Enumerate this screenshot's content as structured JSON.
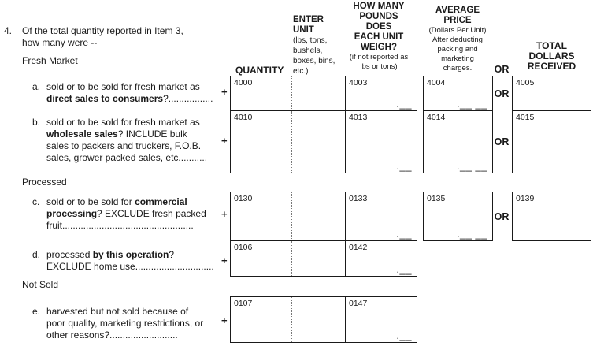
{
  "item": {
    "number": "4.",
    "question_line1": "Of the total quantity reported in Item 3,",
    "question_line2": "how many were --"
  },
  "sections": {
    "fresh_market": "Fresh Market",
    "processed": "Processed",
    "not_sold": "Not Sold"
  },
  "plus_sign": "+",
  "marks": {
    "single": ".__",
    "double": ".__ __"
  },
  "headers": {
    "quantity": "QUANTITY",
    "enter_unit": {
      "l1": "ENTER",
      "l2": "UNIT",
      "s1": "(lbs, tons,",
      "s2": "bushels,",
      "s3": "boxes, bins,",
      "s4": "etc.)"
    },
    "unit_weight": {
      "l1": "HOW MANY",
      "l2": "POUNDS",
      "l3": "DOES",
      "l4": "EACH UNIT",
      "l5": "WEIGH?",
      "s1": "(if not reported as",
      "s2": "lbs or tons)"
    },
    "avg_price": {
      "l1": "AVERAGE",
      "l2": "PRICE",
      "s1": "(Dollars Per Unit)",
      "s2": "After deducting",
      "s3": "packing and",
      "s4": "marketing",
      "s5": "charges."
    },
    "or": "OR",
    "total": {
      "l1": "TOTAL",
      "l2": "DOLLARS",
      "l3": "RECEIVED"
    }
  },
  "rows": {
    "a": {
      "letter": "a.",
      "label": {
        "l1": "sold or to be sold for fresh market as",
        "l2_bold": "direct sales to consumers",
        "l2_rest": "?................."
      },
      "codes": {
        "quantity": "4000",
        "pounds": "4003",
        "price": "4004",
        "total": "4005"
      }
    },
    "b": {
      "letter": "b.",
      "label": {
        "l1": "sold or to be sold for fresh market as",
        "l2_bold": "wholesale sales",
        "l2_rest": "? INCLUDE bulk",
        "l3": "sales to packers and truckers, F.O.B.",
        "l4": "sales, grower packed sales, etc..........."
      },
      "codes": {
        "quantity": "4010",
        "pounds": "4013",
        "price": "4014",
        "total": "4015"
      }
    },
    "c": {
      "letter": "c.",
      "label": {
        "l1_pre": "sold or to be sold for ",
        "l1_bold": "commercial",
        "l2_bold": "processing",
        "l2_rest": "? EXCLUDE fresh packed",
        "l3": "fruit.................................................."
      },
      "codes": {
        "quantity": "0130",
        "pounds": "0133",
        "price": "0135",
        "total": "0139"
      }
    },
    "d": {
      "letter": "d.",
      "label": {
        "l1_pre": "processed ",
        "l1_bold": "by this operation",
        "l1_rest": "?",
        "l2": "EXCLUDE home use.............................."
      },
      "codes": {
        "quantity": "0106",
        "pounds": "0142"
      }
    },
    "e": {
      "letter": "e.",
      "label": {
        "l1": "harvested but not sold because of",
        "l2": "poor quality, marketing restrictions, or",
        "l3": "other reasons?.........................."
      },
      "codes": {
        "quantity": "0107",
        "pounds": "0147"
      }
    }
  }
}
